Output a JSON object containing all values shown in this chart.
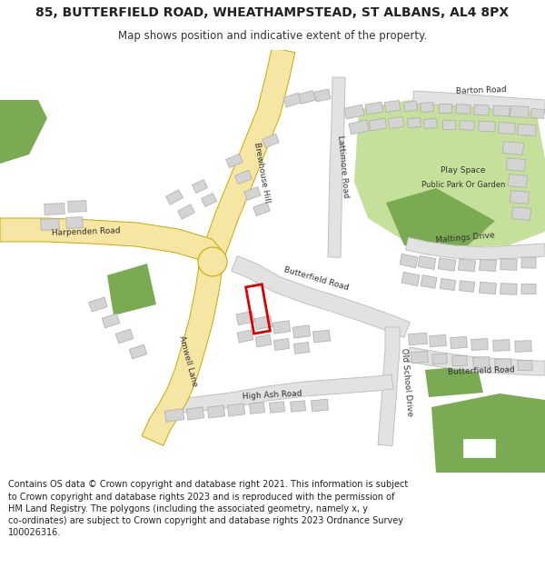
{
  "title": "85, BUTTERFIELD ROAD, WHEATHAMPSTEAD, ST ALBANS, AL4 8PX",
  "subtitle": "Map shows position and indicative extent of the property.",
  "footer": "Contains OS data © Crown copyright and database right 2021. This information is subject\nto Crown copyright and database rights 2023 and is reproduced with the permission of\nHM Land Registry. The polygons (including the associated geometry, namely x, y\nco-ordinates) are subject to Crown copyright and database rights 2023 Ordnance Survey\n100026316.",
  "bg_color": "#ffffff",
  "road_yellow": "#f5e6a3",
  "road_yellow_outline": "#c8a800",
  "road_gray": "#e2e2e2",
  "road_gray_outline": "#c0c0c0",
  "building_fill": "#d4d4d4",
  "building_outline": "#aaaaaa",
  "green_dark": "#7aab52",
  "green_light": "#c5e09a",
  "red_property": "#dd0000",
  "title_fontsize": 10,
  "subtitle_fontsize": 8.5,
  "footer_fontsize": 7.0,
  "label_fontsize": 6.5
}
